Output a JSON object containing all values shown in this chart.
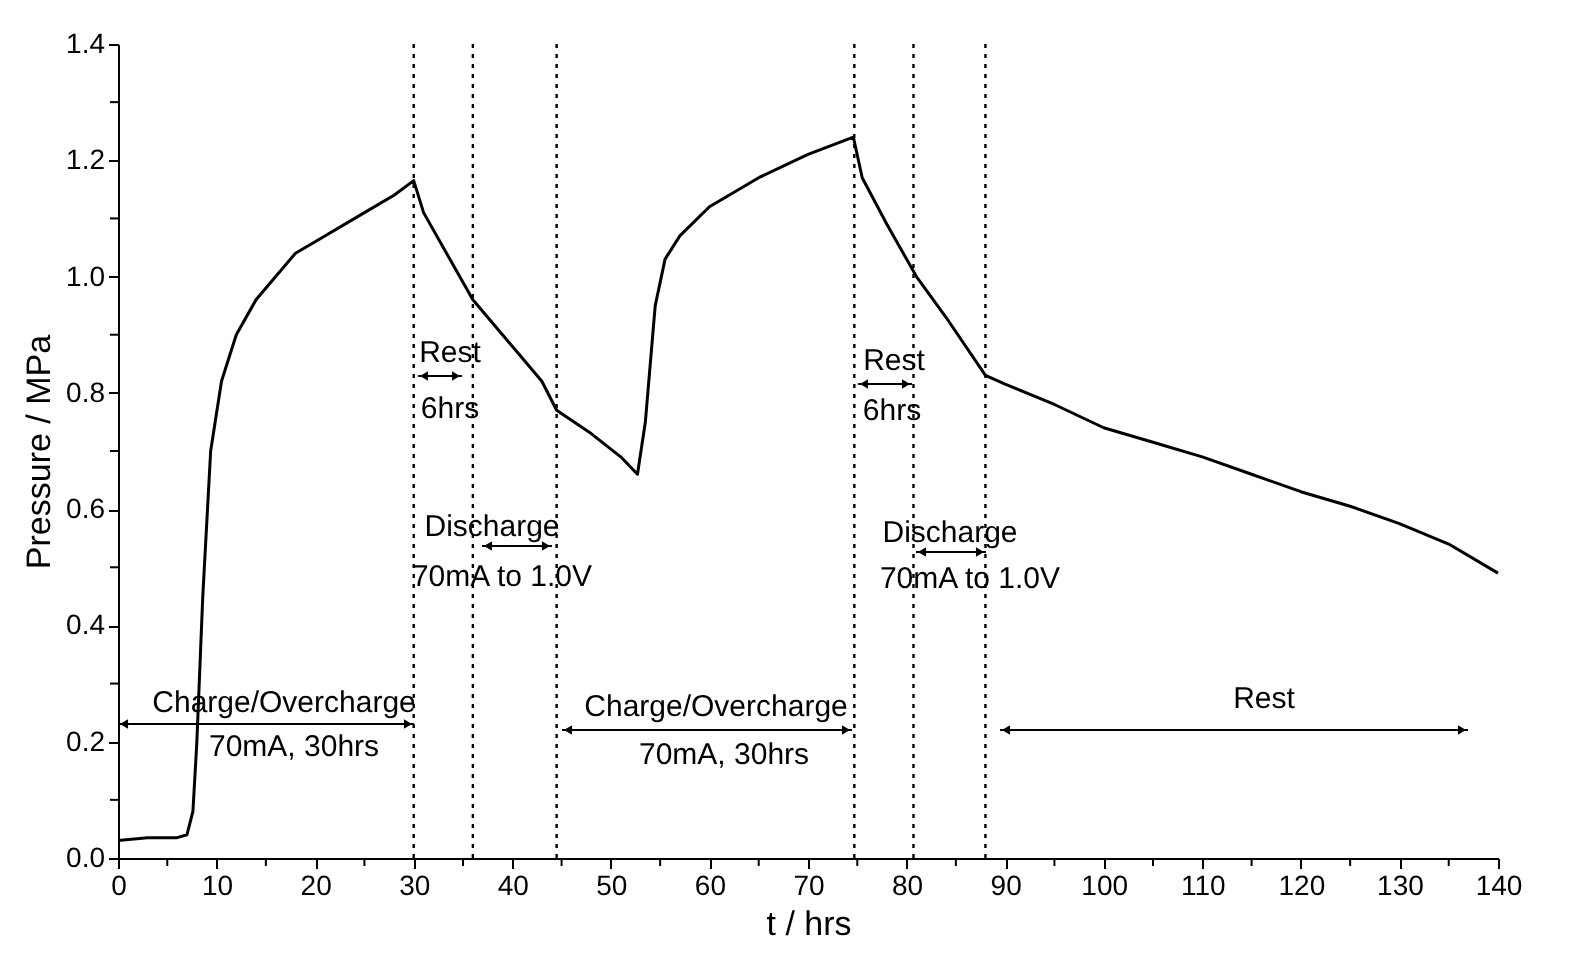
{
  "chart_data": {
    "type": "line",
    "xlabel": "t / hrs",
    "ylabel": "Pressure / MPa",
    "x": [
      0,
      3,
      6,
      7,
      7.6,
      8,
      8.6,
      9.4,
      10.5,
      12,
      14,
      16,
      18,
      20,
      25,
      28,
      30,
      31,
      33,
      36,
      40,
      43,
      44.5,
      48,
      51,
      52.7,
      53.5,
      54.5,
      55.5,
      57,
      60,
      65,
      70,
      74.6,
      75.5,
      78,
      81,
      84,
      88,
      90,
      95,
      100,
      105,
      110,
      115,
      120,
      125,
      130,
      135,
      140
    ],
    "series": [
      {
        "color": "#000000",
        "values": [
          0.03,
          0.035,
          0.035,
          0.04,
          0.08,
          0.2,
          0.45,
          0.7,
          0.82,
          0.9,
          0.96,
          1.0,
          1.04,
          1.06,
          1.11,
          1.14,
          1.165,
          1.11,
          1.05,
          0.96,
          0.88,
          0.82,
          0.77,
          0.73,
          0.69,
          0.66,
          0.75,
          0.95,
          1.03,
          1.07,
          1.12,
          1.17,
          1.21,
          1.24,
          1.17,
          1.09,
          1.0,
          0.93,
          0.83,
          0.815,
          0.78,
          0.74,
          0.715,
          0.69,
          0.66,
          0.63,
          0.605,
          0.575,
          0.54,
          0.49
        ]
      }
    ],
    "xlim": [
      0,
      140
    ],
    "xticks": [
      0,
      {
        "value": 5,
        "label": null
      },
      10,
      {
        "value": 15,
        "label": null
      },
      20,
      {
        "value": 25,
        "label": null
      },
      30,
      {
        "value": 35,
        "label": null
      },
      40,
      {
        "value": 45,
        "label": null
      },
      50,
      {
        "value": 55,
        "label": null
      },
      60,
      {
        "value": 65,
        "label": null
      },
      70,
      {
        "value": 75,
        "label": null
      },
      80,
      {
        "value": 85,
        "label": null
      },
      90,
      {
        "value": 95,
        "label": null
      },
      100,
      {
        "value": 105,
        "label": null
      },
      110,
      {
        "value": 115,
        "label": null
      },
      120,
      {
        "value": 125,
        "label": null
      },
      130,
      {
        "value": 135,
        "label": null
      },
      140
    ],
    "ylim": [
      0,
      1.4
    ],
    "yticks": [
      {
        "value": 0,
        "label": "0.0"
      },
      {
        "value": 0.1,
        "label": null
      },
      0.2,
      {
        "value": 0.3,
        "label": null
      },
      0.4,
      {
        "value": 0.5,
        "label": null
      },
      0.6,
      {
        "value": 0.7,
        "label": null
      },
      0.8,
      {
        "value": 0.9,
        "label": null
      },
      {
        "value": 1,
        "label": "1.0"
      },
      {
        "value": 1.1,
        "label": null
      },
      1.2,
      {
        "value": 1.3,
        "label": null
      },
      1.4
    ],
    "ref_lines": [
      {
        "axis": "x",
        "value": 30,
        "line_style": "dotted",
        "color": "#000000"
      },
      {
        "axis": "x",
        "value": 36,
        "line_style": "dotted",
        "color": "#000000"
      },
      {
        "axis": "x",
        "value": 44.5,
        "line_style": "dotted",
        "color": "#000000"
      },
      {
        "axis": "x",
        "value": 74.7,
        "line_style": "dotted",
        "color": "#000000"
      },
      {
        "axis": "x",
        "value": 80.7,
        "line_style": "dotted",
        "color": "#000000"
      },
      {
        "axis": "x",
        "value": 88,
        "line_style": "dotted",
        "color": "#000000"
      }
    ],
    "annotations": [
      "Charge/Overcharge",
      "70mA, 30hrs",
      "Rest",
      "6hrs",
      "Discharge",
      "70mA to 1.0V",
      "Charge/Overcharge",
      "70mA, 30hrs",
      "Rest",
      "6hrs",
      "Discharge",
      "70mA to 1.0V",
      "Rest"
    ],
    "grid": false,
    "marker": "none",
    "line_style": "solid"
  }
}
